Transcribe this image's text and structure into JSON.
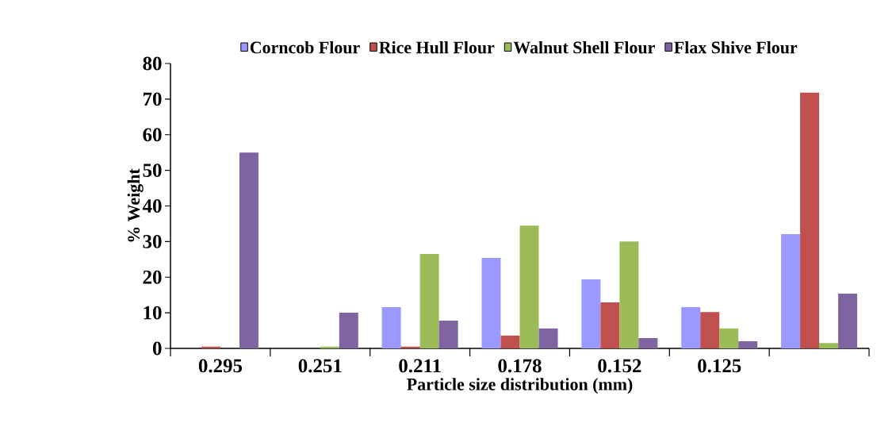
{
  "chart_data": {
    "type": "bar",
    "xlabel": "Particle size distribution (mm)",
    "ylabel": "% Weight",
    "categories": [
      "0.295",
      "0.251",
      "0.211",
      "0.178",
      "0.152",
      "0.125",
      null
    ],
    "series": [
      {
        "name": "Corncob Flour",
        "color": "#9999ff",
        "values": [
          0,
          0,
          11.6,
          25.4,
          19.4,
          11.6,
          32.1
        ]
      },
      {
        "name": "Rice Hull Flour",
        "color": "#c0504d",
        "values": [
          0.5,
          0,
          0.5,
          3.6,
          12.9,
          10.2,
          71.8
        ]
      },
      {
        "name": "Walnut Shell Flour",
        "color": "#9bbb59",
        "values": [
          0,
          0.5,
          26.5,
          34.5,
          30.0,
          5.6,
          1.5
        ]
      },
      {
        "name": "Flax Shive Flour",
        "color": "#8064a2",
        "values": [
          55.0,
          10.0,
          7.8,
          5.6,
          2.9,
          2.0,
          15.4
        ]
      }
    ],
    "ylim": [
      0,
      80
    ],
    "yticks": [
      0,
      10,
      20,
      30,
      40,
      50,
      60,
      70,
      80
    ],
    "grid": false,
    "legend": "top"
  }
}
